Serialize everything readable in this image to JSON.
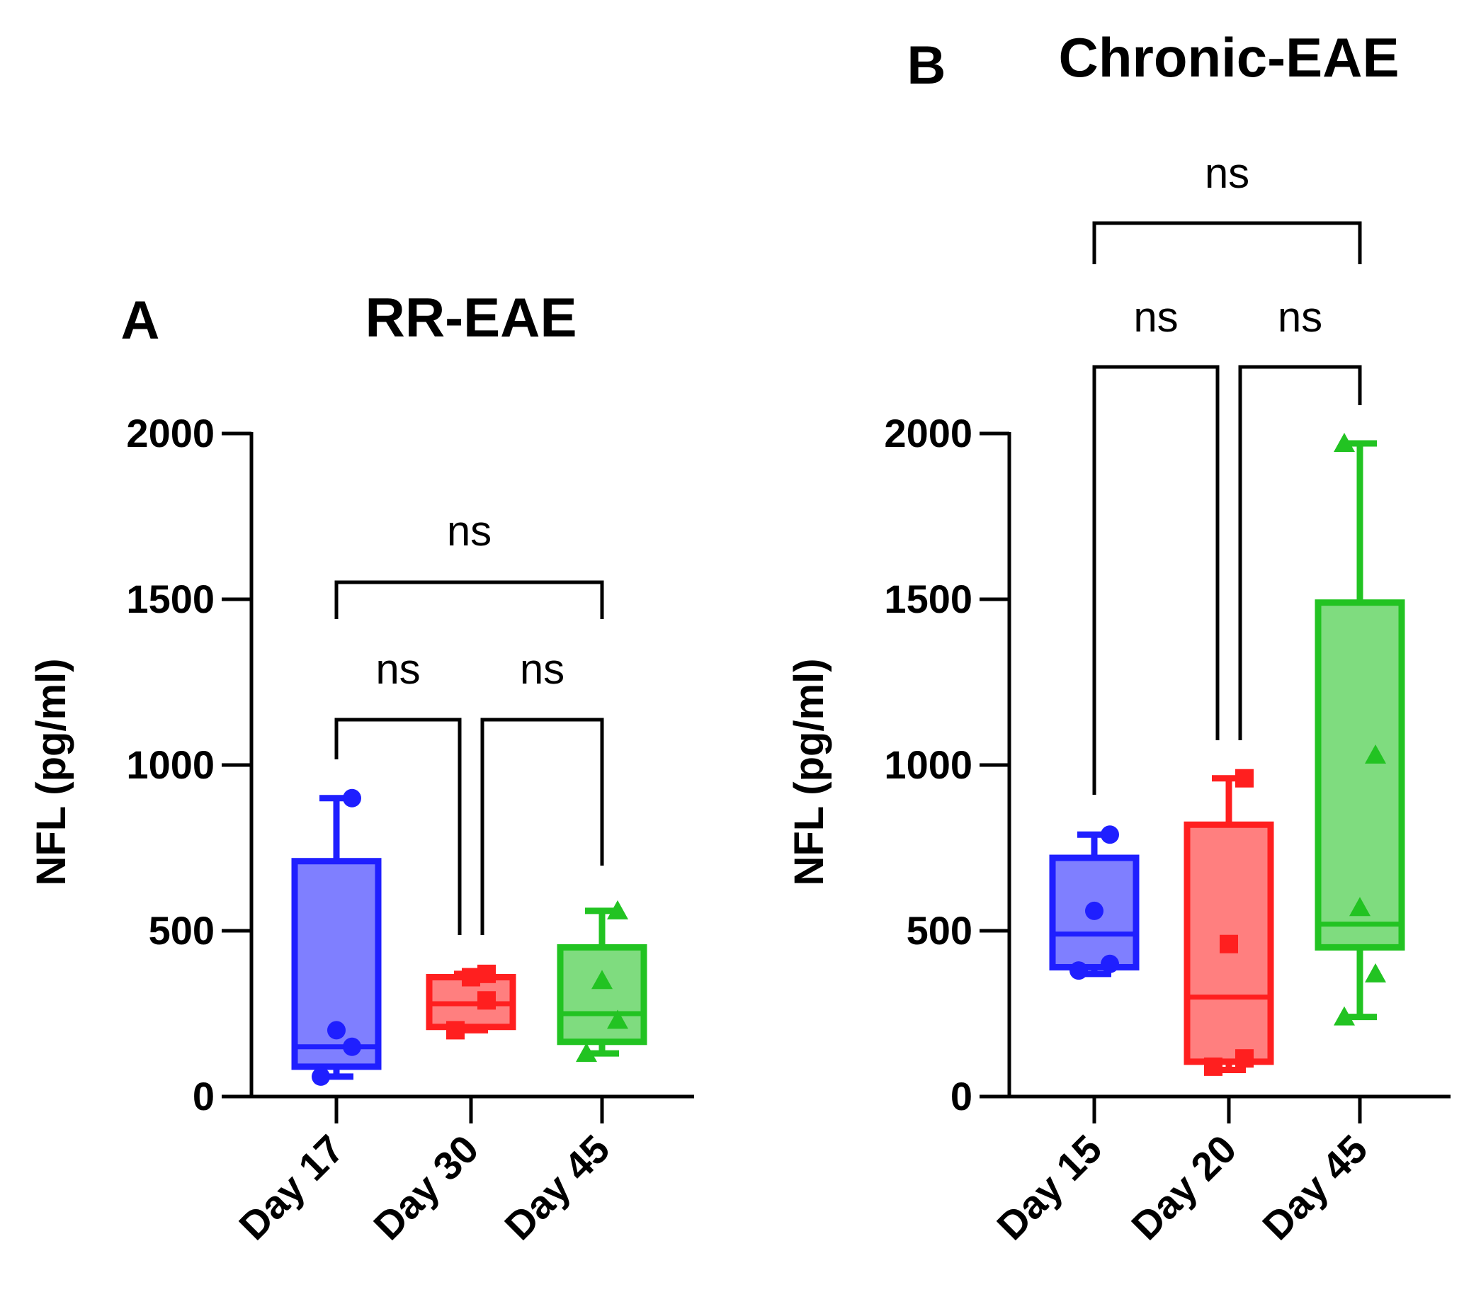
{
  "chart_data": [
    {
      "type": "box",
      "panel_letter": "A",
      "title": "RR-EAE",
      "ylabel": "NFL (pg/ml)",
      "ylim": [
        0,
        2000
      ],
      "yticks": [
        0,
        500,
        1000,
        1500,
        2000
      ],
      "ytick_labels": [
        "0",
        "500",
        "1000",
        "1500",
        "2000"
      ],
      "categories": [
        "Day 17",
        "Day 30",
        "Day 45"
      ],
      "colors": [
        "#1f1fff",
        "#ff1f1f",
        "#22c322"
      ],
      "fills": [
        "#7f7fff",
        "#ff7f7f",
        "#7fdc7f"
      ],
      "markers": [
        "circle",
        "square",
        "triangle"
      ],
      "boxes": [
        {
          "min": 60,
          "q1": 90,
          "median": 150,
          "q3": 710,
          "max": 900,
          "points": [
            60,
            150,
            200,
            900
          ]
        },
        {
          "min": 200,
          "q1": 210,
          "median": 280,
          "q3": 360,
          "max": 370,
          "points": [
            200,
            290,
            360,
            370
          ]
        },
        {
          "min": 130,
          "q1": 165,
          "median": 250,
          "q3": 450,
          "max": 560,
          "points": [
            130,
            230,
            350,
            560
          ]
        }
      ],
      "comparisons": [
        {
          "a": 0,
          "b": 2,
          "label": "ns"
        },
        {
          "a": 0,
          "b": 1,
          "label": "ns"
        },
        {
          "a": 1,
          "b": 2,
          "label": "ns"
        }
      ]
    },
    {
      "type": "box",
      "panel_letter": "B",
      "title": "Chronic-EAE",
      "ylabel": "NFL (pg/ml)",
      "ylim": [
        0,
        2000
      ],
      "yticks": [
        0,
        500,
        1000,
        1500,
        2000
      ],
      "ytick_labels": [
        "0",
        "500",
        "1000",
        "1500",
        "2000"
      ],
      "categories": [
        "Day 15",
        "Day 20",
        "Day 45"
      ],
      "colors": [
        "#1f1fff",
        "#ff1f1f",
        "#22c322"
      ],
      "fills": [
        "#7f7fff",
        "#ff7f7f",
        "#7fdc7f"
      ],
      "markers": [
        "circle",
        "square",
        "triangle"
      ],
      "boxes": [
        {
          "min": 370,
          "q1": 390,
          "median": 490,
          "q3": 720,
          "max": 790,
          "points": [
            380,
            400,
            560,
            790
          ]
        },
        {
          "min": 80,
          "q1": 105,
          "median": 300,
          "q3": 820,
          "max": 960,
          "points": [
            90,
            115,
            460,
            960
          ]
        },
        {
          "min": 240,
          "q1": 450,
          "median": 520,
          "q3": 1490,
          "max": 1970,
          "points": [
            240,
            370,
            570,
            1030,
            1970
          ]
        }
      ],
      "comparisons": [
        {
          "a": 0,
          "b": 2,
          "label": "ns"
        },
        {
          "a": 0,
          "b": 1,
          "label": "ns"
        },
        {
          "a": 1,
          "b": 2,
          "label": "ns"
        }
      ]
    }
  ]
}
